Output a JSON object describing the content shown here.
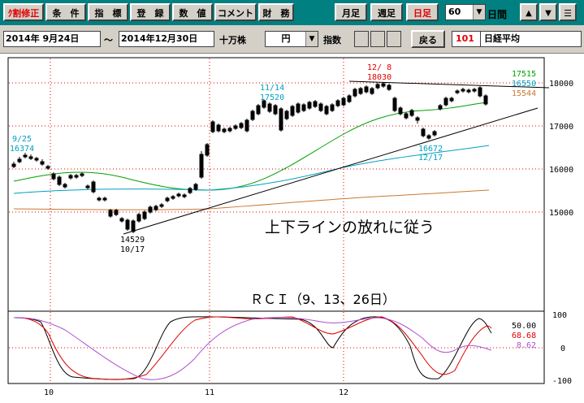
{
  "toolbar": {
    "buttons": [
      "ｸ割修正",
      "条　件",
      "指　標",
      "登　録",
      "数　値",
      "コメント",
      "財　務"
    ],
    "period_buttons": [
      "月足",
      "週足",
      "日足"
    ],
    "period_value": "60",
    "period_unit": "日間",
    "arrow_up": "▲",
    "arrow_down": "▼",
    "menu": "☰"
  },
  "rangebar": {
    "start_date": "2014年 9月24日",
    "tilde": "～",
    "end_date": "2014年12月30日",
    "unit_label": "十万株",
    "currency": "円",
    "index_label": "指数",
    "back_label": "戻る",
    "code": "101",
    "name": "日経平均"
  },
  "main_chart": {
    "y_ticks": [
      "18000",
      "17000",
      "16000",
      "15000"
    ],
    "x_ticks": [
      "10",
      "11",
      "12"
    ],
    "labels": {
      "a1": "9/25",
      "a2": "16374",
      "b1": "11/14",
      "b2": "17520",
      "c1": "12/ 8",
      "c2": "18030",
      "d1": "14529",
      "d2": "10/17",
      "e1": "16672",
      "e2": "12/17"
    },
    "ma_values": [
      "17515",
      "16550",
      "15544"
    ],
    "annotation": "上下ラインの放れに従う"
  },
  "rci": {
    "title": "ＲＣＩ（9、13、26日）",
    "y_ticks": [
      "100",
      "0",
      "-100"
    ],
    "values": [
      "50.00",
      "68.68",
      "8.62"
    ]
  },
  "colors": {
    "toolbar_bg": "#008080",
    "up_candle": "#e00000",
    "ma_short": "#00a000",
    "ma_mid": "#00a0c0",
    "ma_long": "#c87832",
    "rci_9": "#000000",
    "rci_13": "#e00000",
    "rci_26": "#b050d0"
  }
}
